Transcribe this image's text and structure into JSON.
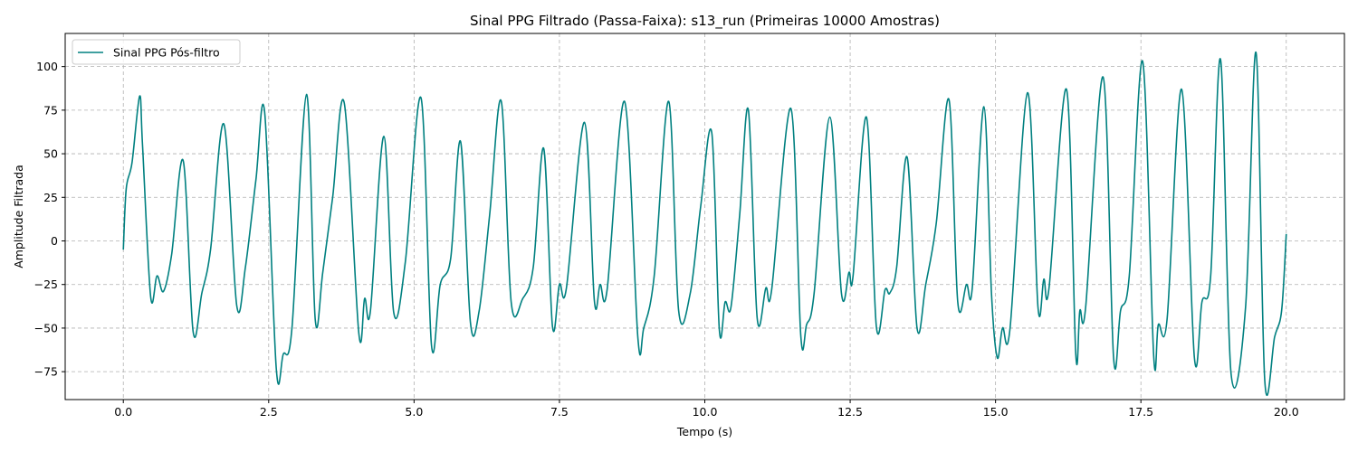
{
  "chart_data": {
    "type": "line",
    "title": "Sinal PPG Filtrado (Passa-Faixa): s13_run (Primeiras 10000 Amostras)",
    "xlabel": "Tempo (s)",
    "ylabel": "Amplitude Filtrada",
    "xlim": [
      -1.0,
      21.0
    ],
    "ylim": [
      -91,
      119
    ],
    "xticks": [
      0.0,
      2.5,
      5.0,
      7.5,
      10.0,
      12.5,
      15.0,
      17.5,
      20.0
    ],
    "xtick_labels": [
      "0.0",
      "2.5",
      "5.0",
      "7.5",
      "10.0",
      "12.5",
      "15.0",
      "17.5",
      "20.0"
    ],
    "yticks": [
      -75,
      -50,
      -25,
      0,
      25,
      50,
      75,
      100
    ],
    "ytick_labels": [
      "−75",
      "−50",
      "−25",
      "0",
      "25",
      "50",
      "75",
      "100"
    ],
    "grid": true,
    "legend_position": "top-left",
    "series": [
      {
        "name": "Sinal PPG Pós-filtro",
        "color": "#008080",
        "x": [
          0.0,
          0.05,
          0.15,
          0.28,
          0.33,
          0.47,
          0.58,
          0.69,
          0.83,
          1.03,
          1.2,
          1.35,
          1.5,
          1.73,
          1.95,
          2.1,
          2.28,
          2.43,
          2.63,
          2.75,
          2.9,
          3.15,
          3.3,
          3.43,
          3.6,
          3.8,
          4.05,
          4.15,
          4.25,
          4.48,
          4.65,
          4.85,
          5.12,
          5.3,
          5.45,
          5.63,
          5.8,
          5.97,
          6.12,
          6.3,
          6.5,
          6.67,
          6.87,
          7.05,
          7.23,
          7.38,
          7.5,
          7.62,
          7.93,
          8.1,
          8.2,
          8.32,
          8.62,
          8.85,
          8.95,
          9.13,
          9.38,
          9.55,
          9.75,
          9.93,
          10.12,
          10.25,
          10.35,
          10.45,
          10.6,
          10.75,
          10.9,
          11.05,
          11.15,
          11.48,
          11.65,
          11.75,
          11.88,
          12.15,
          12.35,
          12.48,
          12.55,
          12.78,
          12.95,
          13.1,
          13.18,
          13.3,
          13.48,
          13.65,
          13.8,
          13.98,
          14.2,
          14.35,
          14.5,
          14.6,
          14.8,
          14.93,
          15.03,
          15.12,
          15.25,
          15.55,
          15.73,
          15.83,
          15.92,
          16.22,
          16.38,
          16.45,
          16.55,
          16.85,
          17.03,
          17.15,
          17.3,
          17.53,
          17.72,
          17.8,
          17.95,
          18.2,
          18.42,
          18.55,
          18.7,
          18.87,
          19.05,
          19.3,
          19.48,
          19.63,
          19.8,
          19.92,
          20.0
        ],
        "y": [
          -5,
          30,
          45,
          83,
          55,
          -32,
          -20,
          -29,
          -8,
          46,
          -52,
          -30,
          -5,
          67,
          -37,
          -15,
          35,
          74,
          -73,
          -65,
          -50,
          84,
          -45,
          -18,
          25,
          79,
          -53,
          -33,
          -40,
          60,
          -41,
          -12,
          82,
          -60,
          -25,
          -10,
          57,
          -47,
          -40,
          15,
          80,
          -35,
          -33,
          -15,
          53,
          -49,
          -25,
          -27,
          68,
          -34,
          -25,
          -28,
          80,
          -56,
          -50,
          -20,
          80,
          -40,
          -30,
          20,
          62,
          -51,
          -35,
          -38,
          15,
          75,
          -44,
          -27,
          -28,
          76,
          -54,
          -48,
          -30,
          71,
          -30,
          -18,
          -20,
          71,
          -49,
          -28,
          -30,
          -15,
          48,
          -50,
          -25,
          10,
          81,
          -35,
          -25,
          -27,
          77,
          -30,
          -67,
          -50,
          -50,
          85,
          -38,
          -22,
          -27,
          87,
          -65,
          -40,
          -38,
          94,
          -67,
          -40,
          -20,
          103,
          -66,
          -48,
          -45,
          87,
          -67,
          -35,
          -20,
          104,
          -76,
          -38,
          108,
          -80,
          -55,
          -40,
          4
        ]
      }
    ]
  }
}
